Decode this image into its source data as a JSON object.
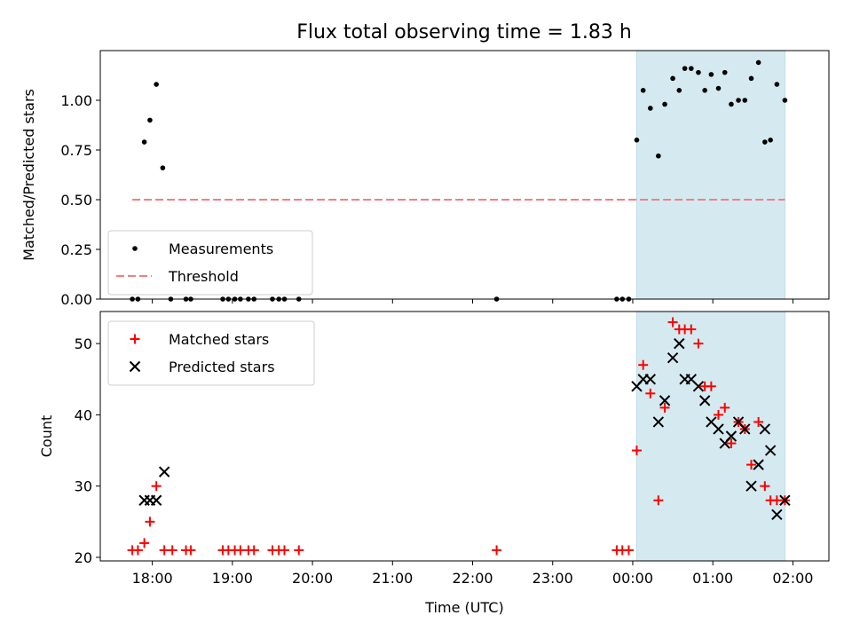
{
  "chart_data": {
    "title": "Flux total observing time = 1.83 h",
    "xlabel": "Time (UTC)",
    "x_range_hours": [
      17.35,
      26.45
    ],
    "x_ticks": [
      {
        "value": 18,
        "label": "18:00"
      },
      {
        "value": 19,
        "label": "19:00"
      },
      {
        "value": 20,
        "label": "20:00"
      },
      {
        "value": 21,
        "label": "21:00"
      },
      {
        "value": 22,
        "label": "22:00"
      },
      {
        "value": 23,
        "label": "23:00"
      },
      {
        "value": 24,
        "label": "00:00"
      },
      {
        "value": 25,
        "label": "01:00"
      },
      {
        "value": 26,
        "label": "02:00"
      }
    ],
    "highlight_span": {
      "start": 24.05,
      "end": 25.9,
      "color": "#d5eaf0"
    },
    "top": {
      "type": "scatter",
      "ylabel": "Matched/Predicted stars",
      "ylim": [
        0,
        1.25
      ],
      "y_ticks": [
        {
          "value": 0,
          "label": "0.00"
        },
        {
          "value": 0.25,
          "label": "0.25"
        },
        {
          "value": 0.5,
          "label": "0.50"
        },
        {
          "value": 0.75,
          "label": "0.75"
        },
        {
          "value": 1.0,
          "label": "1.00"
        }
      ],
      "legend": {
        "position": "lower-left",
        "items": [
          {
            "label": "Measurements",
            "kind": "dot",
            "color": "#000000"
          },
          {
            "label": "Threshold",
            "kind": "dashed-line",
            "color": "#f08080"
          }
        ]
      },
      "threshold": {
        "value": 0.5,
        "x_start": 17.75,
        "x_end": 25.9,
        "color": "#f08080"
      },
      "points": [
        {
          "x": 17.75,
          "y": 0
        },
        {
          "x": 17.82,
          "y": 0
        },
        {
          "x": 17.9,
          "y": 0.79
        },
        {
          "x": 17.97,
          "y": 0.9
        },
        {
          "x": 18.05,
          "y": 1.08
        },
        {
          "x": 18.13,
          "y": 0.66
        },
        {
          "x": 18.23,
          "y": 0
        },
        {
          "x": 18.42,
          "y": 0
        },
        {
          "x": 18.48,
          "y": 0
        },
        {
          "x": 18.88,
          "y": 0
        },
        {
          "x": 18.95,
          "y": 0
        },
        {
          "x": 19.03,
          "y": 0
        },
        {
          "x": 19.1,
          "y": 0
        },
        {
          "x": 19.2,
          "y": 0
        },
        {
          "x": 19.27,
          "y": 0
        },
        {
          "x": 19.5,
          "y": 0
        },
        {
          "x": 19.58,
          "y": 0
        },
        {
          "x": 19.65,
          "y": 0
        },
        {
          "x": 19.83,
          "y": 0
        },
        {
          "x": 22.3,
          "y": 0
        },
        {
          "x": 23.8,
          "y": 0
        },
        {
          "x": 23.87,
          "y": 0
        },
        {
          "x": 23.95,
          "y": 0
        },
        {
          "x": 24.05,
          "y": 0.8
        },
        {
          "x": 24.13,
          "y": 1.05
        },
        {
          "x": 24.22,
          "y": 0.96
        },
        {
          "x": 24.32,
          "y": 0.72
        },
        {
          "x": 24.4,
          "y": 0.98
        },
        {
          "x": 24.5,
          "y": 1.11
        },
        {
          "x": 24.58,
          "y": 1.05
        },
        {
          "x": 24.65,
          "y": 1.16
        },
        {
          "x": 24.73,
          "y": 1.16
        },
        {
          "x": 24.82,
          "y": 1.14
        },
        {
          "x": 24.9,
          "y": 1.05
        },
        {
          "x": 24.98,
          "y": 1.13
        },
        {
          "x": 25.07,
          "y": 1.06
        },
        {
          "x": 25.15,
          "y": 1.14
        },
        {
          "x": 25.23,
          "y": 0.98
        },
        {
          "x": 25.32,
          "y": 1.0
        },
        {
          "x": 25.4,
          "y": 1.0
        },
        {
          "x": 25.48,
          "y": 1.11
        },
        {
          "x": 25.57,
          "y": 1.19
        },
        {
          "x": 25.65,
          "y": 0.79
        },
        {
          "x": 25.72,
          "y": 0.8
        },
        {
          "x": 25.8,
          "y": 1.08
        },
        {
          "x": 25.9,
          "y": 1.0
        }
      ]
    },
    "bottom": {
      "type": "scatter",
      "ylabel": "Count",
      "ylim": [
        19.5,
        54.5
      ],
      "y_ticks": [
        {
          "value": 20,
          "label": "20"
        },
        {
          "value": 30,
          "label": "30"
        },
        {
          "value": 40,
          "label": "40"
        },
        {
          "value": 50,
          "label": "50"
        }
      ],
      "legend": {
        "position": "upper-left",
        "items": [
          {
            "label": "Matched stars",
            "kind": "plus",
            "color": "#ff0000"
          },
          {
            "label": "Predicted stars",
            "kind": "x",
            "color": "#000000"
          }
        ]
      },
      "series": [
        {
          "name": "Matched stars",
          "marker": "plus",
          "color": "#ff0000",
          "points": [
            {
              "x": 17.75,
              "y": 21
            },
            {
              "x": 17.82,
              "y": 21
            },
            {
              "x": 17.9,
              "y": 22
            },
            {
              "x": 17.97,
              "y": 25
            },
            {
              "x": 18.05,
              "y": 30
            },
            {
              "x": 18.15,
              "y": 21
            },
            {
              "x": 18.25,
              "y": 21
            },
            {
              "x": 18.42,
              "y": 21
            },
            {
              "x": 18.48,
              "y": 21
            },
            {
              "x": 18.88,
              "y": 21
            },
            {
              "x": 18.95,
              "y": 21
            },
            {
              "x": 19.03,
              "y": 21
            },
            {
              "x": 19.1,
              "y": 21
            },
            {
              "x": 19.2,
              "y": 21
            },
            {
              "x": 19.27,
              "y": 21
            },
            {
              "x": 19.5,
              "y": 21
            },
            {
              "x": 19.58,
              "y": 21
            },
            {
              "x": 19.65,
              "y": 21
            },
            {
              "x": 19.83,
              "y": 21
            },
            {
              "x": 22.3,
              "y": 21
            },
            {
              "x": 23.8,
              "y": 21
            },
            {
              "x": 23.87,
              "y": 21
            },
            {
              "x": 23.95,
              "y": 21
            },
            {
              "x": 24.05,
              "y": 35
            },
            {
              "x": 24.13,
              "y": 47
            },
            {
              "x": 24.22,
              "y": 43
            },
            {
              "x": 24.32,
              "y": 28
            },
            {
              "x": 24.4,
              "y": 41
            },
            {
              "x": 24.5,
              "y": 53
            },
            {
              "x": 24.58,
              "y": 52
            },
            {
              "x": 24.65,
              "y": 52
            },
            {
              "x": 24.73,
              "y": 52
            },
            {
              "x": 24.82,
              "y": 50
            },
            {
              "x": 24.9,
              "y": 44
            },
            {
              "x": 24.98,
              "y": 44
            },
            {
              "x": 25.07,
              "y": 40
            },
            {
              "x": 25.15,
              "y": 41
            },
            {
              "x": 25.23,
              "y": 36
            },
            {
              "x": 25.32,
              "y": 39
            },
            {
              "x": 25.4,
              "y": 38
            },
            {
              "x": 25.48,
              "y": 33
            },
            {
              "x": 25.57,
              "y": 39
            },
            {
              "x": 25.65,
              "y": 30
            },
            {
              "x": 25.72,
              "y": 28
            },
            {
              "x": 25.8,
              "y": 28
            },
            {
              "x": 25.9,
              "y": 28
            }
          ]
        },
        {
          "name": "Predicted stars",
          "marker": "x",
          "color": "#000000",
          "points": [
            {
              "x": 17.9,
              "y": 28
            },
            {
              "x": 17.97,
              "y": 28
            },
            {
              "x": 18.05,
              "y": 28
            },
            {
              "x": 18.15,
              "y": 32
            },
            {
              "x": 24.05,
              "y": 44
            },
            {
              "x": 24.13,
              "y": 45
            },
            {
              "x": 24.22,
              "y": 45
            },
            {
              "x": 24.32,
              "y": 39
            },
            {
              "x": 24.4,
              "y": 42
            },
            {
              "x": 24.5,
              "y": 48
            },
            {
              "x": 24.58,
              "y": 50
            },
            {
              "x": 24.65,
              "y": 45
            },
            {
              "x": 24.73,
              "y": 45
            },
            {
              "x": 24.82,
              "y": 44
            },
            {
              "x": 24.9,
              "y": 42
            },
            {
              "x": 24.98,
              "y": 39
            },
            {
              "x": 25.07,
              "y": 38
            },
            {
              "x": 25.15,
              "y": 36
            },
            {
              "x": 25.23,
              "y": 37
            },
            {
              "x": 25.32,
              "y": 39
            },
            {
              "x": 25.4,
              "y": 38
            },
            {
              "x": 25.48,
              "y": 30
            },
            {
              "x": 25.57,
              "y": 33
            },
            {
              "x": 25.65,
              "y": 38
            },
            {
              "x": 25.72,
              "y": 35
            },
            {
              "x": 25.8,
              "y": 26
            },
            {
              "x": 25.9,
              "y": 28
            }
          ]
        }
      ]
    }
  }
}
